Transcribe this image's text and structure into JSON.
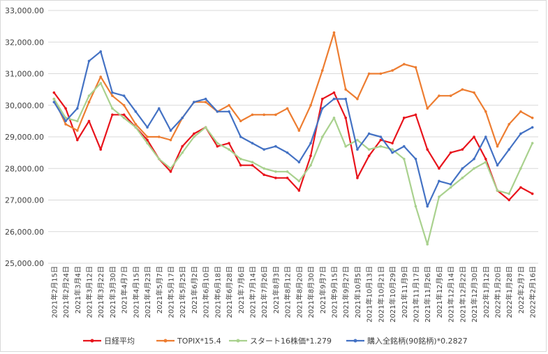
{
  "chart_data": {
    "type": "line",
    "title": "",
    "xlabel": "",
    "ylabel": "",
    "ylim": [
      25000,
      33000
    ],
    "yticks": [
      25000,
      26000,
      27000,
      28000,
      29000,
      30000,
      31000,
      32000,
      33000
    ],
    "ytick_labels": [
      "25,000.00",
      "26,000.00",
      "27,000.00",
      "28,000.00",
      "29,000.00",
      "30,000.00",
      "31,000.00",
      "32,000.00",
      "33,000.00"
    ],
    "grid": "horizontal",
    "legend_position": "bottom",
    "x": [
      "2021年2月15日",
      "2021年2月24日",
      "2021年3月4日",
      "2021年3月12日",
      "2021年3月22日",
      "2021年3月30日",
      "2021年4月7日",
      "2021年4月15日",
      "2021年4月23日",
      "2021年5月7日",
      "2021年5月17日",
      "2021年5月25日",
      "2021年6月2日",
      "2021年6月10日",
      "2021年6月18日",
      "2021年6月28日",
      "2021年7月6日",
      "2021年7月14日",
      "2021年7月26日",
      "2021年8月3日",
      "2021年8月12日",
      "2021年8月20日",
      "2021年8月30日",
      "2021年9月7日",
      "2021年9月15日",
      "2021年9月27日",
      "2021年10月5日",
      "2021年10月13日",
      "2021年10月21日",
      "2021年10月29日",
      "2021年11月9日",
      "2021年11月17日",
      "2021年11月26日",
      "2021年12月6日",
      "2021年12月14日",
      "2021年12月22日",
      "2021年12月30日",
      "2022年1月12日",
      "2022年1月20日",
      "2022年1月28日",
      "2022年2月7日",
      "2022年2月16日"
    ],
    "series": [
      {
        "name": "日経平均",
        "color": "#e8141c",
        "values": [
          30400,
          29900,
          28900,
          29500,
          28600,
          29700,
          29700,
          29300,
          28900,
          28300,
          27900,
          28700,
          29100,
          29300,
          28700,
          28800,
          28100,
          28100,
          27800,
          27700,
          27700,
          27300,
          28400,
          30200,
          30400,
          29600,
          27700,
          28400,
          28900,
          28800,
          29600,
          29700,
          28600,
          28000,
          28500,
          28600,
          29000,
          28300,
          27300,
          27000,
          27400,
          27200
        ]
      },
      {
        "name": "TOPIX*15.4",
        "color": "#ed7d31",
        "values": [
          30200,
          29400,
          29200,
          30100,
          30900,
          30300,
          30000,
          29400,
          29000,
          29000,
          28900,
          29600,
          30100,
          30100,
          29800,
          30000,
          29500,
          29700,
          29700,
          29700,
          29900,
          29200,
          30000,
          31100,
          32300,
          30500,
          30200,
          31000,
          31000,
          31100,
          31300,
          31200,
          29900,
          30300,
          30300,
          30500,
          30400,
          29800,
          28700,
          29400,
          29800,
          29600
        ]
      },
      {
        "name": "スタート16株価*1.279",
        "color": "#a9d18e",
        "values": [
          30200,
          29600,
          29500,
          30300,
          30700,
          29900,
          29600,
          29300,
          28800,
          28300,
          28000,
          28500,
          29000,
          29300,
          28800,
          28600,
          28300,
          28200,
          28000,
          27900,
          27900,
          27600,
          28100,
          29000,
          29600,
          28700,
          28900,
          28600,
          28700,
          28600,
          28300,
          26800,
          25600,
          27100,
          27400,
          27700,
          28000,
          28200,
          27300,
          27200,
          28000,
          28800
        ]
      },
      {
        "name": "購入全銘柄(90銘柄)*0.2827",
        "color": "#4472c4",
        "values": [
          30100,
          29500,
          29900,
          31400,
          31700,
          30400,
          30300,
          29800,
          29300,
          29900,
          29200,
          29600,
          30100,
          30200,
          29800,
          29800,
          29000,
          28800,
          28600,
          28700,
          28500,
          28200,
          28800,
          29900,
          30200,
          30200,
          28600,
          29100,
          29000,
          28500,
          28700,
          28300,
          26800,
          27600,
          27500,
          28000,
          28300,
          29000,
          28100,
          28600,
          29100,
          29300
        ]
      }
    ]
  }
}
